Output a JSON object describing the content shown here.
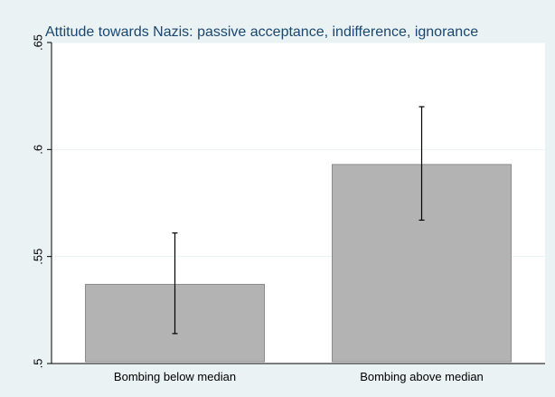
{
  "chart_data": {
    "type": "bar",
    "title": "Attitude towards Nazis: passive acceptance, indifference, ignorance",
    "categories": [
      "Bombing below median",
      "Bombing above median"
    ],
    "values": [
      0.537,
      0.593
    ],
    "error_bars": [
      {
        "low": 0.514,
        "high": 0.561
      },
      {
        "low": 0.567,
        "high": 0.62
      }
    ],
    "ylim": [
      0.5,
      0.65
    ],
    "yticks": [
      {
        "value": 0.5,
        "label": ".5"
      },
      {
        "value": 0.55,
        "label": ".55"
      },
      {
        "value": 0.6,
        "label": ".6"
      },
      {
        "value": 0.65,
        "label": ".65"
      }
    ],
    "xlabel": "",
    "ylabel": "",
    "grid": true,
    "colors": {
      "bar": "#b3b3b3",
      "bar_edge": "#8c8c8c",
      "title": "#1a476f",
      "grid": "#eaf2f3",
      "plot_bg": "#ffffff",
      "background": "#eaf2f3"
    }
  }
}
